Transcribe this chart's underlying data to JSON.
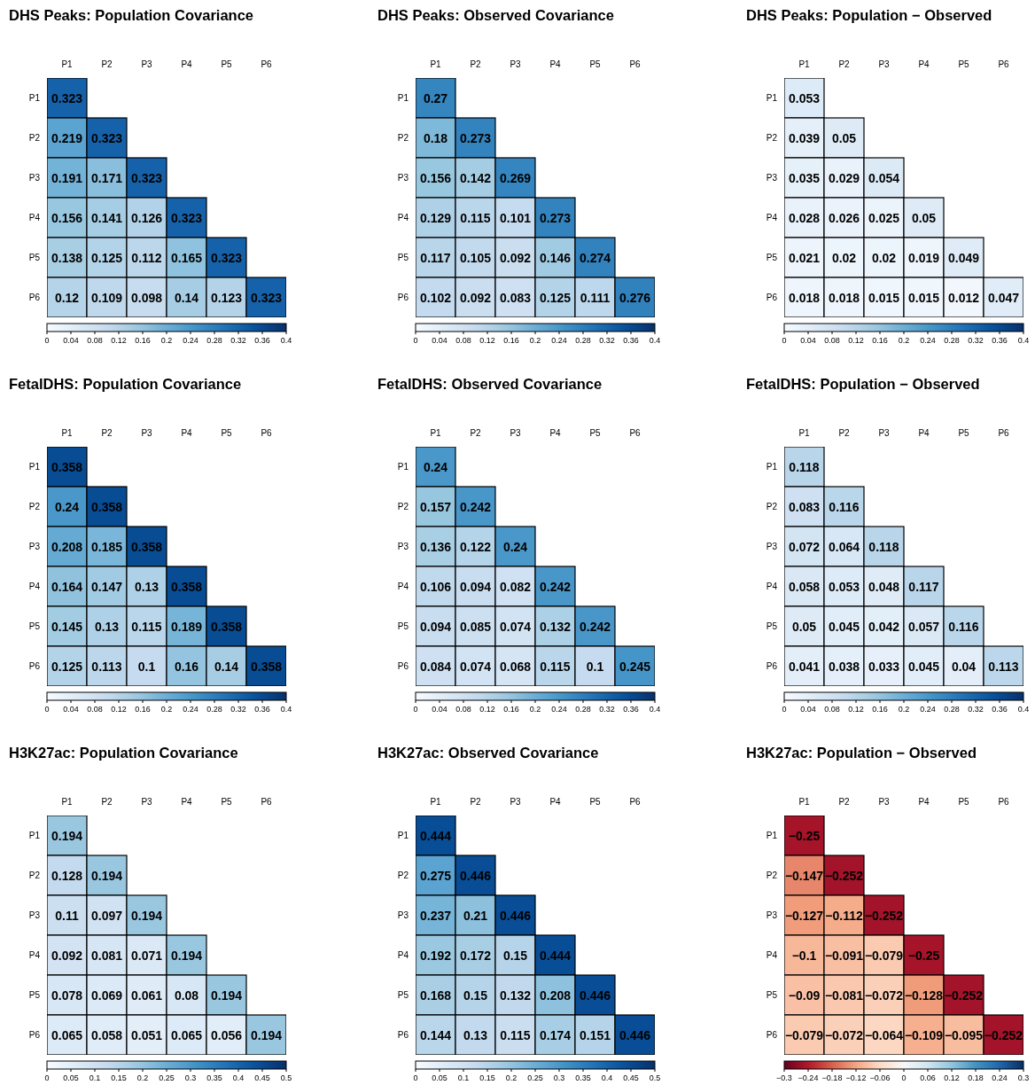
{
  "chart_data": [
    {
      "type": "heatmap",
      "title": "DHS Peaks: Population Covariance",
      "categories": [
        "P1",
        "P2",
        "P3",
        "P4",
        "P5",
        "P6"
      ],
      "y_categories": [
        "P1",
        "P2",
        "P3",
        "P4",
        "P5",
        "P6"
      ],
      "clim": [
        0,
        0.4
      ],
      "cticks": [
        0,
        0.04,
        0.08,
        0.12,
        0.16,
        0.2,
        0.24,
        0.28,
        0.32,
        0.36,
        0.4
      ],
      "data_labels": true,
      "cells": [
        [
          0.323,
          null,
          null,
          null,
          null,
          null
        ],
        [
          0.219,
          0.323,
          null,
          null,
          null,
          null
        ],
        [
          0.191,
          0.171,
          0.323,
          null,
          null,
          null
        ],
        [
          0.156,
          0.141,
          0.126,
          0.323,
          null,
          null
        ],
        [
          0.138,
          0.125,
          0.112,
          0.165,
          0.323,
          null
        ],
        [
          0.12,
          0.109,
          0.098,
          0.14,
          0.123,
          0.323
        ]
      ]
    },
    {
      "type": "heatmap",
      "title": "DHS Peaks: Observed Covariance",
      "categories": [
        "P1",
        "P2",
        "P3",
        "P4",
        "P5",
        "P6"
      ],
      "y_categories": [
        "P1",
        "P2",
        "P3",
        "P4",
        "P5",
        "P6"
      ],
      "clim": [
        0,
        0.4
      ],
      "cticks": [
        0,
        0.04,
        0.08,
        0.12,
        0.16,
        0.2,
        0.24,
        0.28,
        0.32,
        0.36,
        0.4
      ],
      "data_labels": true,
      "cells": [
        [
          0.27,
          null,
          null,
          null,
          null,
          null
        ],
        [
          0.18,
          0.273,
          null,
          null,
          null,
          null
        ],
        [
          0.156,
          0.142,
          0.269,
          null,
          null,
          null
        ],
        [
          0.129,
          0.115,
          0.101,
          0.273,
          null,
          null
        ],
        [
          0.117,
          0.105,
          0.092,
          0.146,
          0.274,
          null
        ],
        [
          0.102,
          0.092,
          0.083,
          0.125,
          0.111,
          0.276
        ]
      ]
    },
    {
      "type": "heatmap",
      "title": "DHS Peaks: Population − Observed",
      "categories": [
        "P1",
        "P2",
        "P3",
        "P4",
        "P5",
        "P6"
      ],
      "y_categories": [
        "P1",
        "P2",
        "P3",
        "P4",
        "P5",
        "P6"
      ],
      "clim": [
        0,
        0.4
      ],
      "cticks": [
        0,
        0.04,
        0.08,
        0.12,
        0.16,
        0.2,
        0.24,
        0.28,
        0.32,
        0.36,
        0.4
      ],
      "data_labels": true,
      "cells": [
        [
          0.053,
          null,
          null,
          null,
          null,
          null
        ],
        [
          0.039,
          0.05,
          null,
          null,
          null,
          null
        ],
        [
          0.035,
          0.029,
          0.054,
          null,
          null,
          null
        ],
        [
          0.028,
          0.026,
          0.025,
          0.05,
          null,
          null
        ],
        [
          0.021,
          0.02,
          0.02,
          0.019,
          0.049,
          null
        ],
        [
          0.018,
          0.018,
          0.015,
          0.015,
          0.012,
          0.047
        ]
      ]
    },
    {
      "type": "heatmap",
      "title": "FetalDHS: Population Covariance",
      "categories": [
        "P1",
        "P2",
        "P3",
        "P4",
        "P5",
        "P6"
      ],
      "y_categories": [
        "P1",
        "P2",
        "P3",
        "P4",
        "P5",
        "P6"
      ],
      "clim": [
        0,
        0.4
      ],
      "cticks": [
        0,
        0.04,
        0.08,
        0.12,
        0.16,
        0.2,
        0.24,
        0.28,
        0.32,
        0.36,
        0.4
      ],
      "data_labels": true,
      "cells": [
        [
          0.358,
          null,
          null,
          null,
          null,
          null
        ],
        [
          0.24,
          0.358,
          null,
          null,
          null,
          null
        ],
        [
          0.208,
          0.185,
          0.358,
          null,
          null,
          null
        ],
        [
          0.164,
          0.147,
          0.13,
          0.358,
          null,
          null
        ],
        [
          0.145,
          0.13,
          0.115,
          0.189,
          0.358,
          null
        ],
        [
          0.125,
          0.113,
          0.1,
          0.16,
          0.14,
          0.358
        ]
      ]
    },
    {
      "type": "heatmap",
      "title": "FetalDHS: Observed Covariance",
      "categories": [
        "P1",
        "P2",
        "P3",
        "P4",
        "P5",
        "P6"
      ],
      "y_categories": [
        "P1",
        "P2",
        "P3",
        "P4",
        "P5",
        "P6"
      ],
      "clim": [
        0,
        0.4
      ],
      "cticks": [
        0,
        0.04,
        0.08,
        0.12,
        0.16,
        0.2,
        0.24,
        0.28,
        0.32,
        0.36,
        0.4
      ],
      "data_labels": true,
      "cells": [
        [
          0.24,
          null,
          null,
          null,
          null,
          null
        ],
        [
          0.157,
          0.242,
          null,
          null,
          null,
          null
        ],
        [
          0.136,
          0.122,
          0.24,
          null,
          null,
          null
        ],
        [
          0.106,
          0.094,
          0.082,
          0.242,
          null,
          null
        ],
        [
          0.094,
          0.085,
          0.074,
          0.132,
          0.242,
          null
        ],
        [
          0.084,
          0.074,
          0.068,
          0.115,
          0.1,
          0.245
        ]
      ]
    },
    {
      "type": "heatmap",
      "title": "FetalDHS: Population − Observed",
      "categories": [
        "P1",
        "P2",
        "P3",
        "P4",
        "P5",
        "P6"
      ],
      "y_categories": [
        "P1",
        "P2",
        "P3",
        "P4",
        "P5",
        "P6"
      ],
      "clim": [
        0,
        0.4
      ],
      "cticks": [
        0,
        0.04,
        0.08,
        0.12,
        0.16,
        0.2,
        0.24,
        0.28,
        0.32,
        0.36,
        0.4
      ],
      "data_labels": true,
      "cells": [
        [
          0.118,
          null,
          null,
          null,
          null,
          null
        ],
        [
          0.083,
          0.116,
          null,
          null,
          null,
          null
        ],
        [
          0.072,
          0.064,
          0.118,
          null,
          null,
          null
        ],
        [
          0.058,
          0.053,
          0.048,
          0.117,
          null,
          null
        ],
        [
          0.05,
          0.045,
          0.042,
          0.057,
          0.116,
          null
        ],
        [
          0.041,
          0.038,
          0.033,
          0.045,
          0.04,
          0.113
        ]
      ]
    },
    {
      "type": "heatmap",
      "title": "H3K27ac: Population Covariance",
      "categories": [
        "P1",
        "P2",
        "P3",
        "P4",
        "P5",
        "P6"
      ],
      "y_categories": [
        "P1",
        "P2",
        "P3",
        "P4",
        "P5",
        "P6"
      ],
      "clim": [
        0,
        0.5
      ],
      "cticks": [
        0,
        0.05,
        0.1,
        0.15,
        0.2,
        0.25,
        0.3,
        0.35,
        0.4,
        0.45,
        0.5
      ],
      "data_labels": true,
      "cells": [
        [
          0.194,
          null,
          null,
          null,
          null,
          null
        ],
        [
          0.128,
          0.194,
          null,
          null,
          null,
          null
        ],
        [
          0.11,
          0.097,
          0.194,
          null,
          null,
          null
        ],
        [
          0.092,
          0.081,
          0.071,
          0.194,
          null,
          null
        ],
        [
          0.078,
          0.069,
          0.061,
          0.08,
          0.194,
          null
        ],
        [
          0.065,
          0.058,
          0.051,
          0.065,
          0.056,
          0.194
        ]
      ]
    },
    {
      "type": "heatmap",
      "title": "H3K27ac: Observed Covariance",
      "categories": [
        "P1",
        "P2",
        "P3",
        "P4",
        "P5",
        "P6"
      ],
      "y_categories": [
        "P1",
        "P2",
        "P3",
        "P4",
        "P5",
        "P6"
      ],
      "clim": [
        0,
        0.5
      ],
      "cticks": [
        0,
        0.05,
        0.1,
        0.15,
        0.2,
        0.25,
        0.3,
        0.35,
        0.4,
        0.45,
        0.5
      ],
      "data_labels": true,
      "cells": [
        [
          0.444,
          null,
          null,
          null,
          null,
          null
        ],
        [
          0.275,
          0.446,
          null,
          null,
          null,
          null
        ],
        [
          0.237,
          0.21,
          0.446,
          null,
          null,
          null
        ],
        [
          0.192,
          0.172,
          0.15,
          0.444,
          null,
          null
        ],
        [
          0.168,
          0.15,
          0.132,
          0.208,
          0.446,
          null
        ],
        [
          0.144,
          0.13,
          0.115,
          0.174,
          0.151,
          0.446
        ]
      ]
    },
    {
      "type": "heatmap",
      "title": "H3K27ac: Population − Observed",
      "categories": [
        "P1",
        "P2",
        "P3",
        "P4",
        "P5",
        "P6"
      ],
      "y_categories": [
        "P1",
        "P2",
        "P3",
        "P4",
        "P5",
        "P6"
      ],
      "clim": [
        -0.3,
        0.3
      ],
      "cticks": [
        -0.3,
        -0.24,
        -0.18,
        -0.12,
        -0.06,
        0,
        0.06,
        0.12,
        0.18,
        0.24,
        0.3
      ],
      "data_labels": true,
      "cells": [
        [
          -0.25,
          null,
          null,
          null,
          null,
          null
        ],
        [
          -0.147,
          -0.252,
          null,
          null,
          null,
          null
        ],
        [
          -0.127,
          -0.112,
          -0.252,
          null,
          null,
          null
        ],
        [
          -0.1,
          -0.091,
          -0.079,
          -0.25,
          null,
          null
        ],
        [
          -0.09,
          -0.081,
          -0.072,
          -0.128,
          -0.252,
          null
        ],
        [
          -0.079,
          -0.072,
          -0.064,
          -0.109,
          -0.095,
          -0.252
        ]
      ]
    }
  ]
}
